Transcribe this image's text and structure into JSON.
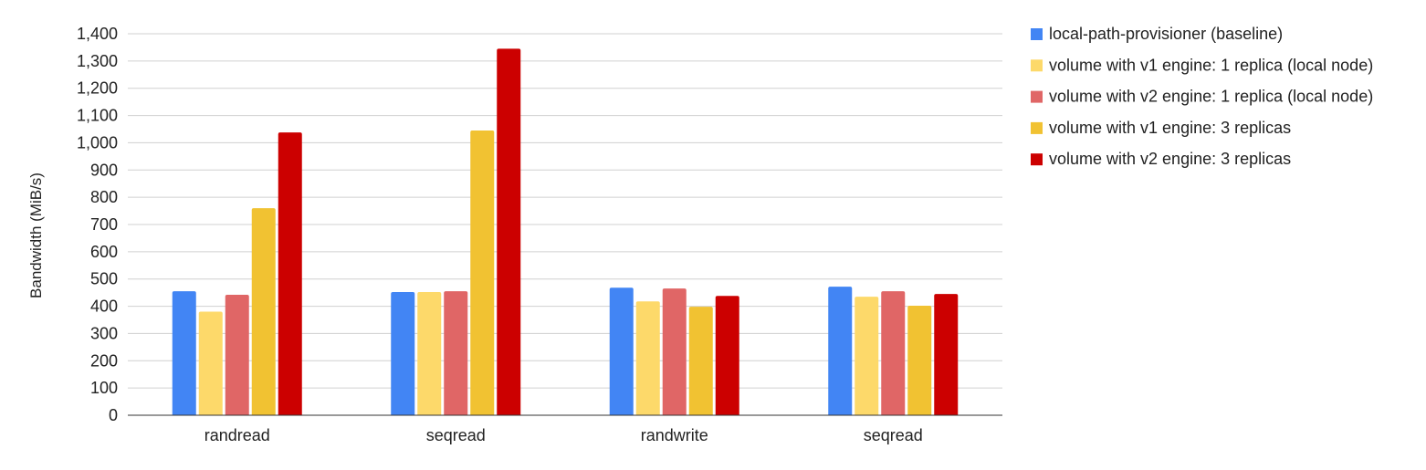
{
  "chart_data": {
    "type": "bar",
    "title": "",
    "xlabel": "",
    "ylabel": "Bandwidth (MiB/s)",
    "ylim": [
      0,
      1400
    ],
    "ytick_step": 100,
    "y_tick_labels": [
      "0",
      "100",
      "200",
      "300",
      "400",
      "500",
      "600",
      "700",
      "800",
      "900",
      "1,000",
      "1,100",
      "1,200",
      "1,300",
      "1,400"
    ],
    "grid": true,
    "legend_position": "right",
    "categories": [
      "randread",
      "seqread",
      "randwrite",
      "seqread"
    ],
    "series": [
      {
        "name": "local-path-provisioner (baseline)",
        "color": "#4285F4",
        "values": [
          455,
          452,
          468,
          472
        ]
      },
      {
        "name": "volume with v1 engine: 1 replica (local node)",
        "color": "#FDD96A",
        "values": [
          380,
          452,
          418,
          435
        ]
      },
      {
        "name": "volume with v2 engine: 1 replica (local node)",
        "color": "#E06666",
        "values": [
          442,
          455,
          465,
          455
        ]
      },
      {
        "name": "volume with v1 engine: 3 replicas",
        "color": "#F1C232",
        "values": [
          760,
          1045,
          398,
          402
        ]
      },
      {
        "name": "volume with v2 engine: 3 replicas",
        "color": "#CC0000",
        "values": [
          1038,
          1345,
          438,
          445
        ]
      }
    ]
  }
}
